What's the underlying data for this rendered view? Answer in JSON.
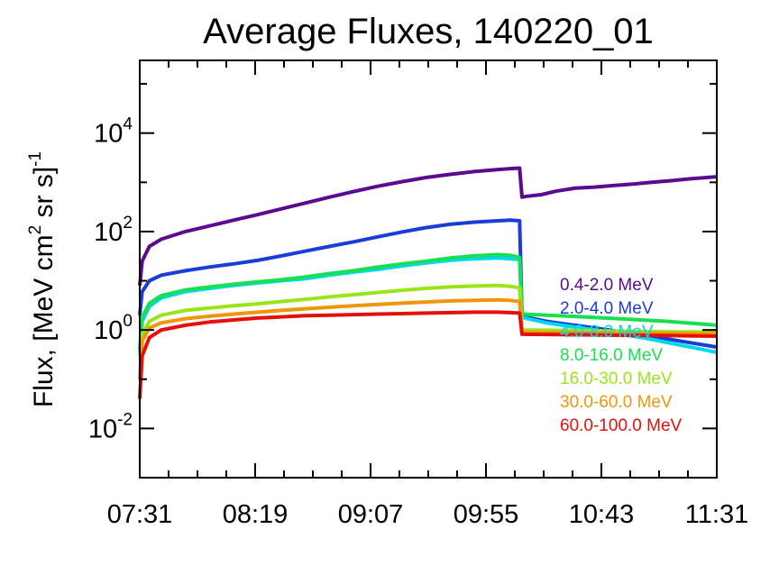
{
  "chart_data": {
    "type": "line",
    "title": "Average Fluxes, 140220_01",
    "ylabel": {
      "base": "Flux, [MeV cm",
      "sup1": "2",
      "mid": " sr s]",
      "sup2": "-1"
    },
    "xlabel": "",
    "yscale": "log",
    "ylim": [
      0.001,
      300000
    ],
    "x_ticks": [
      "07:31",
      "08:19",
      "09:07",
      "09:55",
      "10:43",
      "11:31"
    ],
    "x_tick_minutes": [
      451,
      499,
      547,
      595,
      643,
      691
    ],
    "xlim_minutes": [
      451,
      691
    ],
    "y_ticks": [
      {
        "value": 0.01,
        "base": "10",
        "exp": "-2"
      },
      {
        "value": 1,
        "base": "10",
        "exp": "0"
      },
      {
        "value": 100,
        "base": "10",
        "exp": "2"
      },
      {
        "value": 10000,
        "base": "10",
        "exp": "4"
      }
    ],
    "legend_position": "right",
    "series": [
      {
        "name": "0.4-2.0 MeV",
        "color": "#5b0a91",
        "points": [
          [
            451,
            8
          ],
          [
            452,
            25
          ],
          [
            455,
            50
          ],
          [
            460,
            70
          ],
          [
            470,
            100
          ],
          [
            480,
            130
          ],
          [
            490,
            170
          ],
          [
            500,
            220
          ],
          [
            510,
            290
          ],
          [
            520,
            380
          ],
          [
            530,
            500
          ],
          [
            540,
            650
          ],
          [
            550,
            830
          ],
          [
            560,
            1030
          ],
          [
            570,
            1250
          ],
          [
            580,
            1450
          ],
          [
            590,
            1650
          ],
          [
            600,
            1820
          ],
          [
            605,
            1900
          ],
          [
            609,
            1950
          ],
          [
            610,
            500
          ],
          [
            612,
            520
          ],
          [
            618,
            560
          ],
          [
            624,
            660
          ],
          [
            632,
            760
          ],
          [
            640,
            800
          ],
          [
            648,
            860
          ],
          [
            656,
            920
          ],
          [
            664,
            1000
          ],
          [
            672,
            1080
          ],
          [
            680,
            1180
          ],
          [
            691,
            1300
          ]
        ]
      },
      {
        "name": "2.0-4.0 MeV",
        "color": "#1a3dd8",
        "points": [
          [
            451,
            2
          ],
          [
            452,
            6
          ],
          [
            455,
            10
          ],
          [
            460,
            13
          ],
          [
            470,
            16
          ],
          [
            480,
            19
          ],
          [
            490,
            22
          ],
          [
            500,
            26
          ],
          [
            510,
            32
          ],
          [
            520,
            40
          ],
          [
            530,
            50
          ],
          [
            540,
            62
          ],
          [
            550,
            78
          ],
          [
            560,
            98
          ],
          [
            570,
            120
          ],
          [
            580,
            140
          ],
          [
            590,
            155
          ],
          [
            600,
            165
          ],
          [
            605,
            170
          ],
          [
            609,
            165
          ],
          [
            610,
            1.9
          ],
          [
            620,
            1.5
          ],
          [
            640,
            1.1
          ],
          [
            660,
            0.8
          ],
          [
            680,
            0.55
          ],
          [
            691,
            0.45
          ]
        ]
      },
      {
        "name": "4.0-8.0 MeV",
        "color": "#00d8f0",
        "points": [
          [
            451,
            0.35
          ],
          [
            452,
            1.5
          ],
          [
            455,
            3
          ],
          [
            460,
            4.5
          ],
          [
            470,
            6
          ],
          [
            480,
            7
          ],
          [
            490,
            8
          ],
          [
            500,
            9
          ],
          [
            510,
            10
          ],
          [
            520,
            11
          ],
          [
            530,
            13
          ],
          [
            540,
            15
          ],
          [
            550,
            17
          ],
          [
            560,
            20
          ],
          [
            570,
            23
          ],
          [
            580,
            26
          ],
          [
            590,
            28
          ],
          [
            600,
            29
          ],
          [
            605,
            28
          ],
          [
            609,
            27
          ],
          [
            610,
            1.8
          ],
          [
            620,
            1.4
          ],
          [
            640,
            1.0
          ],
          [
            660,
            0.7
          ],
          [
            680,
            0.45
          ],
          [
            691,
            0.35
          ]
        ]
      },
      {
        "name": "8.0-16.0 MeV",
        "color": "#18e050",
        "points": [
          [
            451,
            0.4
          ],
          [
            452,
            1.8
          ],
          [
            455,
            3.5
          ],
          [
            460,
            5
          ],
          [
            470,
            6.5
          ],
          [
            480,
            7.5
          ],
          [
            490,
            8.5
          ],
          [
            500,
            9.5
          ],
          [
            510,
            10.5
          ],
          [
            520,
            12
          ],
          [
            530,
            14
          ],
          [
            540,
            16
          ],
          [
            550,
            19
          ],
          [
            560,
            22
          ],
          [
            570,
            25
          ],
          [
            580,
            29
          ],
          [
            590,
            32
          ],
          [
            600,
            34
          ],
          [
            605,
            33
          ],
          [
            609,
            30
          ],
          [
            610,
            2.1
          ],
          [
            630,
            1.9
          ],
          [
            650,
            1.7
          ],
          [
            670,
            1.5
          ],
          [
            691,
            1.25
          ]
        ]
      },
      {
        "name": "16.0-30.0 MeV",
        "color": "#98e61a",
        "points": [
          [
            451,
            0.3
          ],
          [
            452,
            0.8
          ],
          [
            455,
            1.5
          ],
          [
            460,
            2
          ],
          [
            470,
            2.5
          ],
          [
            480,
            2.8
          ],
          [
            490,
            3.1
          ],
          [
            500,
            3.4
          ],
          [
            510,
            3.8
          ],
          [
            520,
            4.2
          ],
          [
            530,
            4.7
          ],
          [
            540,
            5.2
          ],
          [
            550,
            5.8
          ],
          [
            560,
            6.4
          ],
          [
            570,
            7
          ],
          [
            580,
            7.5
          ],
          [
            590,
            7.8
          ],
          [
            600,
            8
          ],
          [
            605,
            7.7
          ],
          [
            609,
            7.2
          ],
          [
            610,
            1.0
          ],
          [
            630,
            0.98
          ],
          [
            650,
            0.95
          ],
          [
            670,
            0.92
          ],
          [
            691,
            0.9
          ]
        ]
      },
      {
        "name": "30.0-60.0 MeV",
        "color": "#f0960a",
        "points": [
          [
            451,
            0.1
          ],
          [
            452,
            0.6
          ],
          [
            455,
            1.1
          ],
          [
            460,
            1.4
          ],
          [
            470,
            1.7
          ],
          [
            480,
            1.9
          ],
          [
            490,
            2.1
          ],
          [
            500,
            2.3
          ],
          [
            510,
            2.5
          ],
          [
            520,
            2.7
          ],
          [
            530,
            2.9
          ],
          [
            540,
            3.1
          ],
          [
            550,
            3.3
          ],
          [
            560,
            3.5
          ],
          [
            570,
            3.7
          ],
          [
            580,
            3.9
          ],
          [
            590,
            4.0
          ],
          [
            600,
            4.1
          ],
          [
            605,
            4.0
          ],
          [
            609,
            3.8
          ],
          [
            610,
            0.9
          ],
          [
            630,
            0.88
          ],
          [
            650,
            0.86
          ],
          [
            670,
            0.85
          ],
          [
            691,
            0.84
          ]
        ]
      },
      {
        "name": "60.0-100.0 MeV",
        "color": "#e4100c",
        "points": [
          [
            451,
            0.04
          ],
          [
            452,
            0.3
          ],
          [
            455,
            0.7
          ],
          [
            460,
            1.0
          ],
          [
            470,
            1.25
          ],
          [
            480,
            1.45
          ],
          [
            490,
            1.6
          ],
          [
            500,
            1.75
          ],
          [
            510,
            1.85
          ],
          [
            520,
            1.95
          ],
          [
            530,
            2.0
          ],
          [
            540,
            2.05
          ],
          [
            550,
            2.1
          ],
          [
            560,
            2.15
          ],
          [
            570,
            2.2
          ],
          [
            580,
            2.25
          ],
          [
            590,
            2.3
          ],
          [
            600,
            2.3
          ],
          [
            605,
            2.25
          ],
          [
            609,
            2.2
          ],
          [
            610,
            0.82
          ],
          [
            630,
            0.8
          ],
          [
            650,
            0.78
          ],
          [
            670,
            0.77
          ],
          [
            691,
            0.75
          ]
        ]
      }
    ]
  }
}
